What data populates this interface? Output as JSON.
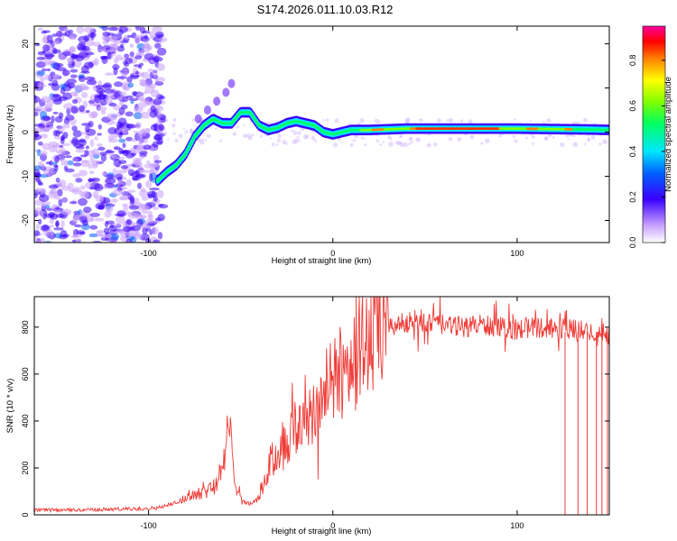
{
  "title": "S174.2026.011.10.03.R12",
  "chart_data": [
    {
      "type": "heatmap",
      "name": "spectrogram",
      "xlabel": "Height of straight line (km)",
      "ylabel": "Frequency (Hz)",
      "xlim": [
        -162,
        150
      ],
      "ylim": [
        -25,
        24
      ],
      "xticks": [
        -100,
        0,
        100
      ],
      "yticks": [
        -20,
        -10,
        0,
        10,
        20
      ],
      "colorbar": {
        "label": "Normalized spectral amplitude",
        "range": [
          0,
          0.95
        ],
        "ticks": [
          0,
          0.2,
          0.4,
          0.6,
          0.8
        ]
      },
      "ridge_trace": {
        "x": [
          -95,
          -90,
          -85,
          -80,
          -75,
          -70,
          -65,
          -60,
          -55,
          -50,
          -45,
          -40,
          -35,
          -30,
          -25,
          -20,
          -15,
          -10,
          -5,
          0,
          10,
          20,
          40,
          60,
          80,
          100,
          120,
          140,
          150
        ],
        "y": [
          -11,
          -9,
          -7.5,
          -5,
          -1,
          1.5,
          3,
          2,
          2,
          4.5,
          4.5,
          1.5,
          0.5,
          1,
          2,
          2.5,
          2,
          1.5,
          0,
          -0.5,
          0.5,
          0.5,
          0.8,
          0.8,
          0.8,
          0.8,
          0.7,
          0.6,
          0.5
        ]
      },
      "upper_branch": {
        "x": [
          -73,
          -68,
          -63,
          -58,
          -55
        ],
        "y": [
          3,
          5,
          7,
          9,
          11
        ]
      }
    },
    {
      "type": "line",
      "name": "snr",
      "xlabel": "Height of straight line (km)",
      "ylabel": "SNR (10 * v/v)",
      "xlim": [
        -162,
        150
      ],
      "ylim": [
        0,
        930
      ],
      "xticks": [
        -100,
        0,
        100
      ],
      "yticks": [
        0,
        200,
        400,
        600,
        800
      ],
      "color": "#ef3b36",
      "series": [
        {
          "name": "SNR",
          "x": [
            -162,
            -150,
            -130,
            -110,
            -95,
            -88,
            -83,
            -78,
            -72,
            -68,
            -64,
            -60,
            -57,
            -55,
            -52,
            -49,
            -45,
            -42,
            -38,
            -34,
            -30,
            -26,
            -22,
            -18,
            -14,
            -10,
            -6,
            -2,
            2,
            6,
            10,
            14,
            18,
            22,
            26,
            30,
            35,
            40,
            45,
            50,
            60,
            70,
            80,
            90,
            100,
            110,
            120,
            130,
            140,
            150
          ],
          "y": [
            20,
            20,
            22,
            25,
            30,
            45,
            60,
            80,
            100,
            110,
            130,
            180,
            350,
            300,
            120,
            60,
            45,
            60,
            120,
            220,
            260,
            300,
            350,
            380,
            420,
            460,
            500,
            540,
            580,
            620,
            660,
            700,
            730,
            760,
            790,
            800,
            810,
            820,
            830,
            820,
            810,
            800,
            810,
            800,
            790,
            800,
            795,
            790,
            780,
            770
          ]
        }
      ],
      "dropouts_x": [
        126,
        133,
        138,
        143,
        146,
        149
      ]
    }
  ]
}
